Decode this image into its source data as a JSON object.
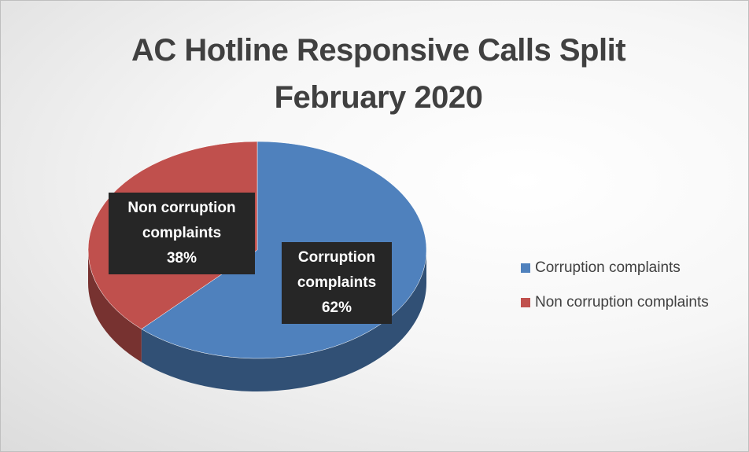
{
  "chart_data": {
    "type": "pie",
    "title": "AC Hotline Responsive Calls Split February 2020",
    "categories": [
      "Corruption complaints",
      "Non corruption complaints"
    ],
    "values": [
      62,
      38
    ],
    "value_labels": [
      "62%",
      "38%"
    ],
    "colors": [
      "#4f81bd",
      "#c0504d"
    ],
    "legend": "right"
  }
}
